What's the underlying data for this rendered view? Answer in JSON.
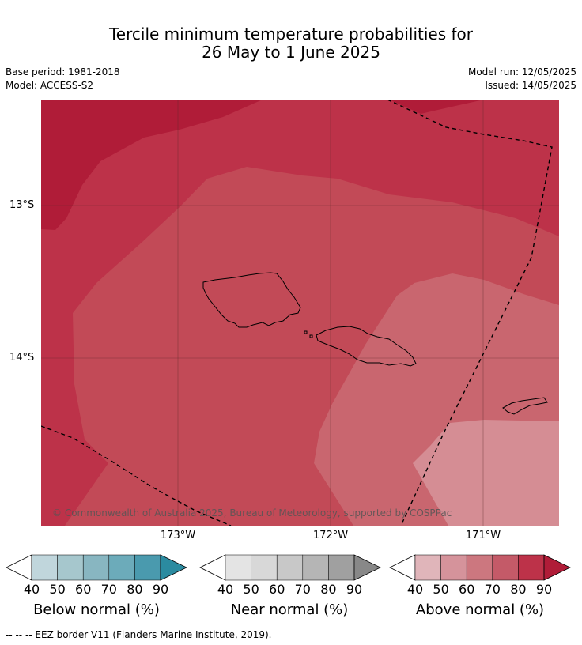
{
  "title": {
    "line1": "Tercile minimum temperature probabilities for",
    "line2": "26 May to 1 June 2025"
  },
  "meta": {
    "base_period": "Base period: 1981-2018",
    "model": "Model: ACCESS-S2",
    "model_run": "Model run: 12/05/2025",
    "issued": "Issued: 14/05/2025"
  },
  "map": {
    "lat_labels": [
      "13°S",
      "14°S"
    ],
    "lon_labels": [
      "173°W",
      "172°W",
      "171°W"
    ],
    "copyright": "© Commonwealth of Australia 2025, Bureau of Meteorology, supported by COSPPac",
    "colors": {
      "p90": "#b01c38",
      "p80": "#bd3249",
      "p70": "#c24a57",
      "p60": "#c9666f",
      "p50": "#d58d94"
    }
  },
  "colorbars": [
    {
      "label": "Below normal (%)",
      "ticks": [
        "40",
        "50",
        "60",
        "70",
        "80",
        "90"
      ],
      "colors": [
        "#c0d6dc",
        "#a6c7cd",
        "#88b6c1",
        "#6cabba",
        "#4a9aae",
        "#2b8ba0"
      ]
    },
    {
      "label": "Near normal (%)",
      "ticks": [
        "40",
        "50",
        "60",
        "70",
        "80",
        "90"
      ],
      "colors": [
        "#e4e4e4",
        "#d8d8d8",
        "#c8c8c8",
        "#b5b5b5",
        "#a0a0a0",
        "#888888"
      ]
    },
    {
      "label": "Above normal (%)",
      "ticks": [
        "40",
        "50",
        "60",
        "70",
        "80",
        "90"
      ],
      "colors": [
        "#e0b5ba",
        "#d5939b",
        "#cc777f",
        "#c45a68",
        "#bd3249",
        "#b01c38"
      ]
    }
  ],
  "footer": {
    "eez_note": "--  --  -- EEZ border V11 (Flanders Marine Institute, 2019)."
  }
}
